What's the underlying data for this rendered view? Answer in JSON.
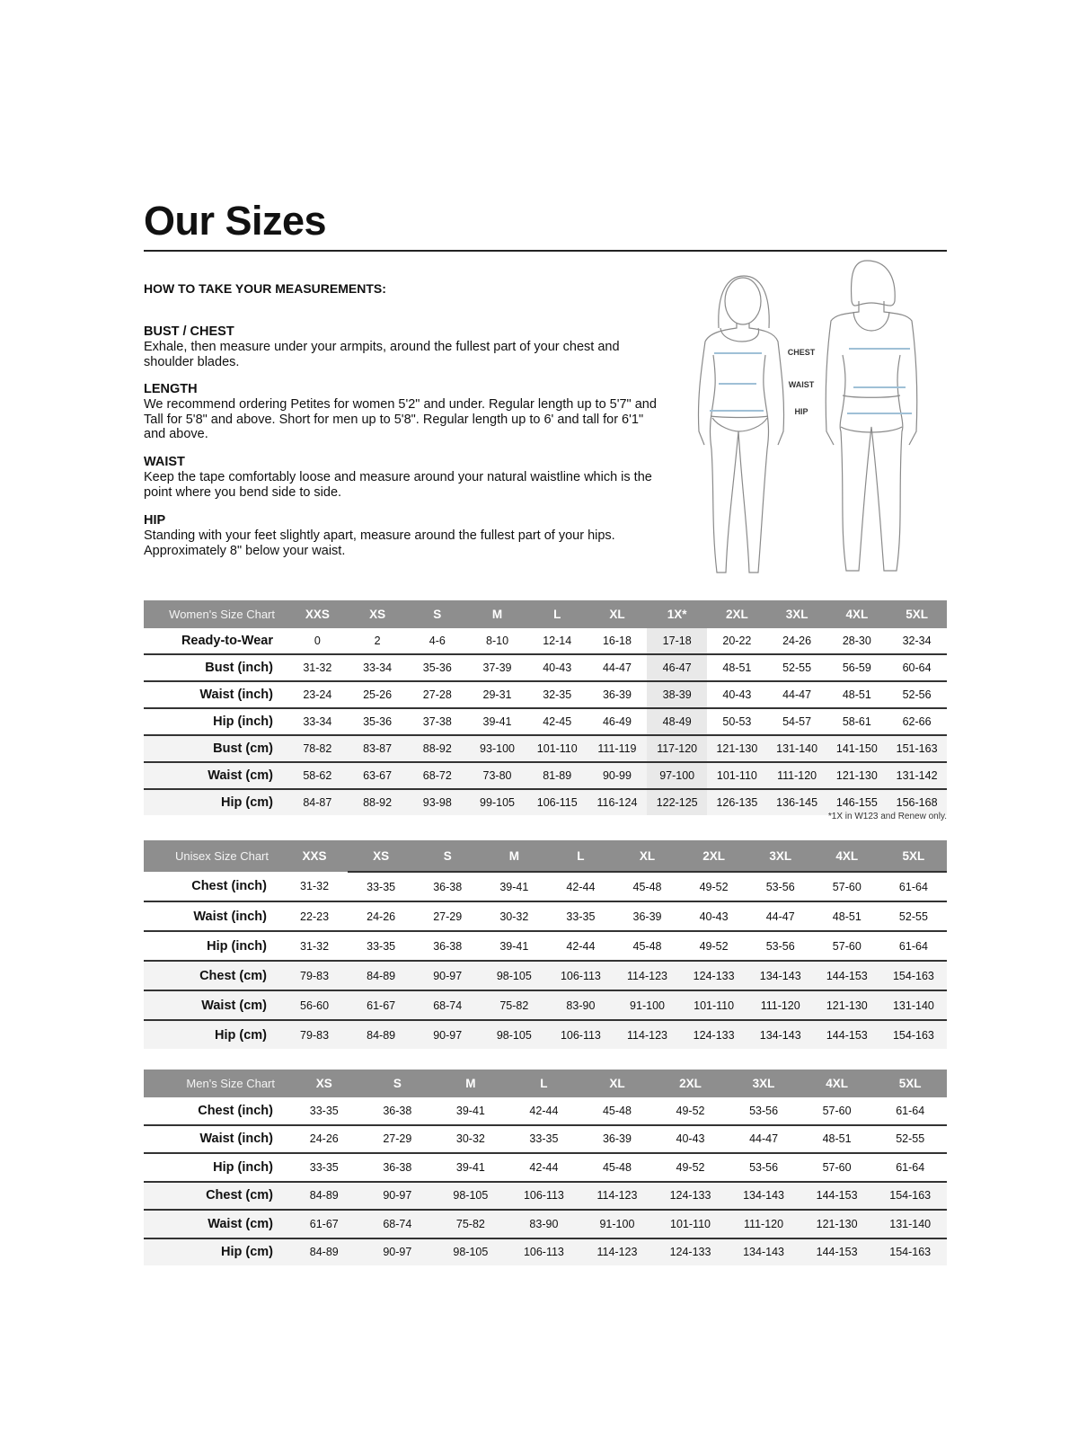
{
  "title": "Our Sizes",
  "how_to": "HOW TO TAKE YOUR MEASUREMENTS:",
  "sections": [
    {
      "heading": "BUST / CHEST",
      "text": "Exhale, then measure under your armpits, around the fullest part of your chest and shoulder blades."
    },
    {
      "heading": "LENGTH",
      "text": "We recommend ordering Petites for women 5'2\" and under. Regular length up to 5'7\" and Tall for 5'8\" and above. Short for men up to 5'8\". Regular length up to 6' and tall for 6'1\" and above."
    },
    {
      "heading": "WAIST",
      "text": "Keep the tape comfortably loose and measure around your natural waistline which is the point where you bend side to side."
    },
    {
      "heading": "HIP",
      "text": "Standing with your feet slightly apart, measure around the fullest part of your hips. Approximately 8\" below your waist."
    }
  ],
  "figure_labels": {
    "chest": "CHEST",
    "waist": "WAIST",
    "hip": "HIP"
  },
  "colors": {
    "header_bg": "#8e8e8e",
    "cm_row_bg": "#f3f3f3",
    "highlight_col": "#e9e9e9",
    "measure_line": "#9fc0d6"
  },
  "women_chart": {
    "title": "Women's Size Chart",
    "sizes": [
      "XXS",
      "XS",
      "S",
      "M",
      "L",
      "XL",
      "1X*",
      "2XL",
      "3XL",
      "4XL",
      "5XL"
    ],
    "highlight_size": "1X*",
    "rows": [
      {
        "label": "Ready-to-Wear",
        "values": [
          "0",
          "2",
          "4-6",
          "8-10",
          "12-14",
          "16-18",
          "17-18",
          "20-22",
          "24-26",
          "28-30",
          "32-34"
        ]
      },
      {
        "label": "Bust (inch)",
        "values": [
          "31-32",
          "33-34",
          "35-36",
          "37-39",
          "40-43",
          "44-47",
          "46-47",
          "48-51",
          "52-55",
          "56-59",
          "60-64"
        ]
      },
      {
        "label": "Waist (inch)",
        "values": [
          "23-24",
          "25-26",
          "27-28",
          "29-31",
          "32-35",
          "36-39",
          "38-39",
          "40-43",
          "44-47",
          "48-51",
          "52-56"
        ]
      },
      {
        "label": "Hip (inch)",
        "values": [
          "33-34",
          "35-36",
          "37-38",
          "39-41",
          "42-45",
          "46-49",
          "48-49",
          "50-53",
          "54-57",
          "58-61",
          "62-66"
        ]
      },
      {
        "label": "Bust (cm)",
        "values": [
          "78-82",
          "83-87",
          "88-92",
          "93-100",
          "101-110",
          "111-119",
          "117-120",
          "121-130",
          "131-140",
          "141-150",
          "151-163"
        ]
      },
      {
        "label": "Waist (cm)",
        "values": [
          "58-62",
          "63-67",
          "68-72",
          "73-80",
          "81-89",
          "90-99",
          "97-100",
          "101-110",
          "111-120",
          "121-130",
          "131-142"
        ]
      },
      {
        "label": "Hip (cm)",
        "values": [
          "84-87",
          "88-92",
          "93-98",
          "99-105",
          "106-115",
          "116-124",
          "122-125",
          "126-135",
          "136-145",
          "146-155",
          "156-168"
        ]
      }
    ],
    "footnote": "*1X in W123 and Renew only."
  },
  "unisex_chart": {
    "title": "Unisex Size Chart",
    "sizes": [
      "XXS",
      "XS",
      "S",
      "M",
      "L",
      "XL",
      "2XL",
      "3XL",
      "4XL",
      "5XL"
    ],
    "rows": [
      {
        "label": "Chest (inch)",
        "values": [
          "31-32",
          "33-35",
          "36-38",
          "39-41",
          "42-44",
          "45-48",
          "49-52",
          "53-56",
          "57-60",
          "61-64"
        ]
      },
      {
        "label": "Waist (inch)",
        "values": [
          "22-23",
          "24-26",
          "27-29",
          "30-32",
          "33-35",
          "36-39",
          "40-43",
          "44-47",
          "48-51",
          "52-55"
        ]
      },
      {
        "label": "Hip (inch)",
        "values": [
          "31-32",
          "33-35",
          "36-38",
          "39-41",
          "42-44",
          "45-48",
          "49-52",
          "53-56",
          "57-60",
          "61-64"
        ]
      },
      {
        "label": "Chest (cm)",
        "values": [
          "79-83",
          "84-89",
          "90-97",
          "98-105",
          "106-113",
          "114-123",
          "124-133",
          "134-143",
          "144-153",
          "154-163"
        ]
      },
      {
        "label": "Waist (cm)",
        "values": [
          "56-60",
          "61-67",
          "68-74",
          "75-82",
          "83-90",
          "91-100",
          "101-110",
          "111-120",
          "121-130",
          "131-140"
        ]
      },
      {
        "label": "Hip (cm)",
        "values": [
          "79-83",
          "84-89",
          "90-97",
          "98-105",
          "106-113",
          "114-123",
          "124-133",
          "134-143",
          "144-153",
          "154-163"
        ]
      }
    ]
  },
  "men_chart": {
    "title": "Men's Size Chart",
    "sizes": [
      "XS",
      "S",
      "M",
      "L",
      "XL",
      "2XL",
      "3XL",
      "4XL",
      "5XL"
    ],
    "rows": [
      {
        "label": "Chest (inch)",
        "values": [
          "33-35",
          "36-38",
          "39-41",
          "42-44",
          "45-48",
          "49-52",
          "53-56",
          "57-60",
          "61-64"
        ]
      },
      {
        "label": "Waist (inch)",
        "values": [
          "24-26",
          "27-29",
          "30-32",
          "33-35",
          "36-39",
          "40-43",
          "44-47",
          "48-51",
          "52-55"
        ]
      },
      {
        "label": "Hip (inch)",
        "values": [
          "33-35",
          "36-38",
          "39-41",
          "42-44",
          "45-48",
          "49-52",
          "53-56",
          "57-60",
          "61-64"
        ]
      },
      {
        "label": "Chest (cm)",
        "values": [
          "84-89",
          "90-97",
          "98-105",
          "106-113",
          "114-123",
          "124-133",
          "134-143",
          "144-153",
          "154-163"
        ]
      },
      {
        "label": "Waist (cm)",
        "values": [
          "61-67",
          "68-74",
          "75-82",
          "83-90",
          "91-100",
          "101-110",
          "111-120",
          "121-130",
          "131-140"
        ]
      },
      {
        "label": "Hip (cm)",
        "values": [
          "84-89",
          "90-97",
          "98-105",
          "106-113",
          "114-123",
          "124-133",
          "134-143",
          "144-153",
          "154-163"
        ]
      }
    ]
  }
}
